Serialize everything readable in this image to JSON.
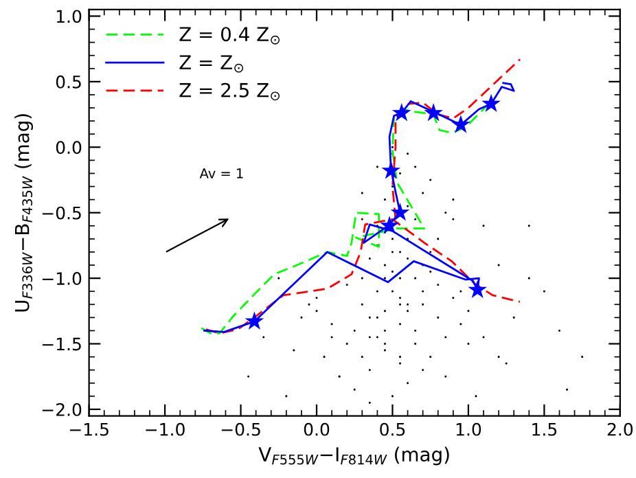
{
  "chart_data": {
    "type": "line",
    "xlabel": "V$_{F555W}$−I$_{F814W}$ (mag)",
    "ylabel": "U$_{F336W}$−B$_{F435W}$ (mag)",
    "xlim": [
      -1.5,
      2.0
    ],
    "ylim": [
      -2.05,
      1.05
    ],
    "xticks": [
      {
        "value": -1.5,
        "label": "−1.5"
      },
      {
        "value": -1.0,
        "label": "−1.0"
      },
      {
        "value": -0.5,
        "label": "−0.5"
      },
      {
        "value": 0.0,
        "label": "0.0"
      },
      {
        "value": 0.5,
        "label": "0.5"
      },
      {
        "value": 1.0,
        "label": "1.0"
      },
      {
        "value": 1.5,
        "label": "1.5"
      },
      {
        "value": 2.0,
        "label": "2.0"
      }
    ],
    "yticks": [
      {
        "value": -2.0,
        "label": "−2.0"
      },
      {
        "value": -1.5,
        "label": "−1.5"
      },
      {
        "value": -1.0,
        "label": "−1.0"
      },
      {
        "value": -0.5,
        "label": "−0.5"
      },
      {
        "value": 0.0,
        "label": "0.0"
      },
      {
        "value": 0.5,
        "label": "0.5"
      },
      {
        "value": 1.0,
        "label": "1.0"
      }
    ],
    "grid": false,
    "legend": "top left",
    "annotations": [
      "Av = 1"
    ],
    "series": [
      {
        "type": "scatter",
        "color": "#000000",
        "marker": "circle",
        "x": [
          -0.05,
          0.1,
          0.2,
          0.3,
          0.35,
          0.4,
          0.45,
          0.5,
          0.55,
          0.6,
          0.65,
          0.7,
          0.75,
          0.8,
          0.9,
          1.0,
          0.15,
          0.25,
          0.35,
          0.45,
          0.55,
          0.65,
          0.75,
          0.85,
          0.95,
          0.3,
          0.4,
          0.5,
          0.6,
          0.7,
          0.8,
          0.2,
          0.35,
          0.45,
          0.55,
          0.65,
          0.9,
          1.1,
          1.2,
          1.3,
          1.5,
          1.6,
          1.75,
          -0.35,
          -0.15,
          -0.1,
          0.0,
          0.05,
          0.1,
          0.25,
          0.4,
          0.5,
          0.6,
          0.7,
          0.85,
          1.0,
          1.05,
          0.45,
          0.5,
          0.55,
          0.6,
          0.4,
          0.45,
          0.5,
          0.55,
          0.6,
          0.65,
          0.7,
          0.3,
          0.8,
          0.9,
          1.2,
          1.4,
          0.45,
          0.55,
          0.5,
          0.6,
          0.4,
          0.35,
          0.45,
          0.55,
          0.3,
          0.7,
          0.65,
          -0.25,
          0.0,
          0.15,
          0.35,
          0.5,
          0.75,
          0.95,
          1.1,
          1.65,
          1.4,
          0.3,
          0.4,
          0.6,
          0.75,
          0.85,
          0.55,
          -0.45,
          -0.2,
          1.25,
          0.45,
          0.5
        ],
        "values": [
          -1.2,
          -1.35,
          -1.5,
          -1.6,
          -1.3,
          -1.1,
          -0.9,
          -0.8,
          -1.0,
          -1.2,
          -1.4,
          -1.1,
          -0.95,
          -1.3,
          -1.15,
          -1.25,
          -1.75,
          -1.85,
          -1.7,
          -1.55,
          -1.65,
          -1.5,
          -1.6,
          -1.45,
          -1.35,
          -1.0,
          -0.75,
          -0.7,
          -0.85,
          -0.9,
          -1.05,
          -1.05,
          -0.85,
          -1.25,
          -1.35,
          -1.0,
          -0.55,
          -0.6,
          -0.9,
          -1.3,
          -1.1,
          -1.4,
          -1.6,
          -1.45,
          -1.55,
          -1.3,
          -1.15,
          -1.6,
          -1.45,
          -1.4,
          -1.45,
          -1.9,
          -1.8,
          -1.7,
          -1.75,
          -1.5,
          -1.9,
          -0.4,
          -0.3,
          -0.2,
          -0.45,
          -0.6,
          -0.65,
          -0.95,
          -1.15,
          -0.7,
          -0.55,
          -0.35,
          -0.55,
          -0.7,
          -0.4,
          -1.6,
          -1.0,
          -1.0,
          -0.8,
          -1.1,
          -1.25,
          -1.3,
          -1.45,
          -1.5,
          -1.2,
          -1.2,
          -1.2,
          -0.15,
          -1.0,
          -1.25,
          -1.75,
          -1.95,
          -0.0,
          -0.8,
          -1.1,
          -1.45,
          -1.85,
          -0.6,
          -0.35,
          -0.15,
          -0.05,
          -0.25,
          -0.5,
          -1.6,
          -1.75,
          -1.9,
          -1.65,
          -1.4,
          -0.05
        ]
      },
      {
        "name": "Z = 0.4 Z$_{⊙}$",
        "color": "#00ff00",
        "line_style": "dashed",
        "x": [
          -0.76,
          -0.7,
          -0.64,
          -0.55,
          -0.4,
          -0.28,
          -0.13,
          0.07,
          0.2,
          0.23,
          0.26,
          0.41,
          0.41,
          0.26,
          0.53,
          0.71,
          0.53,
          0.5,
          0.51,
          0.56,
          0.65,
          0.77,
          0.81,
          0.89,
          0.98,
          1.1,
          1.15
        ],
        "values": [
          -1.38,
          -1.42,
          -1.42,
          -1.29,
          -1.11,
          -0.97,
          -0.9,
          -0.8,
          -0.83,
          -0.73,
          -0.5,
          -0.51,
          -0.76,
          -0.69,
          -0.62,
          -0.62,
          -0.27,
          -0.03,
          0.24,
          0.29,
          0.27,
          0.25,
          0.13,
          0.11,
          0.15,
          0.29,
          0.35
        ]
      },
      {
        "name": "Z = Z$_{⊙}$",
        "color": "#0000ff",
        "line_style": "solid",
        "x": [
          -0.74,
          -0.61,
          -0.41,
          0.07,
          0.47,
          0.64,
          0.98,
          1.07,
          1.06,
          1.03,
          0.5,
          0.35,
          0.31,
          0.47,
          0.55,
          0.52,
          0.49,
          0.48,
          0.51,
          0.56,
          0.62,
          0.77,
          0.95,
          1.07,
          1.15,
          1.22,
          1.3,
          1.28,
          1.23
        ],
        "values": [
          -1.4,
          -1.41,
          -1.33,
          -0.8,
          -1.03,
          -0.87,
          -1.01,
          -1.0,
          -1.09,
          -1.02,
          -0.64,
          -0.59,
          -0.73,
          -0.6,
          -0.5,
          -0.34,
          -0.17,
          0.08,
          0.24,
          0.26,
          0.35,
          0.27,
          0.17,
          0.29,
          0.33,
          0.46,
          0.43,
          0.48,
          0.49
        ]
      },
      {
        "name": "Z = 2.5 Z$_{⊙}$",
        "color": "#ff0000",
        "line_style": "dashed",
        "x": [
          -0.73,
          -0.64,
          -0.52,
          -0.4,
          -0.22,
          0.07,
          0.23,
          0.29,
          0.32,
          0.5,
          0.71,
          0.89,
          1.04,
          1.16,
          1.34,
          null,
          0.52,
          0.5,
          0.52,
          0.52,
          0.6,
          0.7,
          0.8,
          0.9,
          1.0,
          1.34
        ],
        "values": [
          -1.39,
          -1.42,
          -1.39,
          -1.29,
          -1.13,
          -1.08,
          -0.97,
          -0.8,
          -0.59,
          -0.55,
          -0.73,
          -0.87,
          -1.04,
          -1.13,
          -1.18,
          null,
          -0.55,
          -0.3,
          0.0,
          0.22,
          0.33,
          0.34,
          0.25,
          0.22,
          0.3,
          0.67
        ]
      },
      {
        "type": "scatter",
        "color": "#0000ff",
        "marker": "star",
        "x": [
          -0.41,
          1.06,
          0.48,
          0.55,
          0.49,
          0.56,
          0.77,
          0.95,
          1.15
        ],
        "values": [
          -1.33,
          -1.09,
          -0.6,
          -0.5,
          -0.18,
          0.26,
          0.26,
          0.17,
          0.33
        ]
      }
    ]
  }
}
